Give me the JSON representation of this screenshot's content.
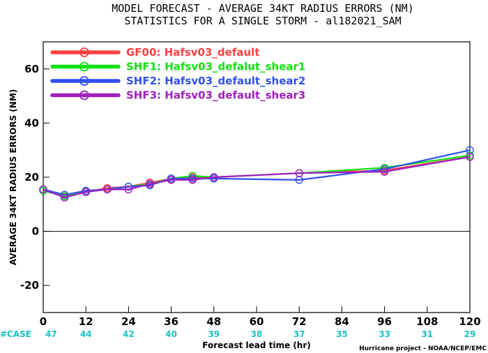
{
  "chart_data": {
    "type": "line",
    "title": "MODEL FORECAST - AVERAGE 34KT RADIUS ERRORS (NM)",
    "subtitle": "STATISTICS FOR A SINGLE STORM - al182021_SAM",
    "xlabel": "Forecast lead time (hr)",
    "ylabel": "AVERAGE 34KT RADIUS ERRORS (NM)",
    "xlim": [
      0,
      120
    ],
    "ylim": [
      -30,
      70
    ],
    "x_ticks": [
      0,
      12,
      24,
      36,
      48,
      60,
      72,
      84,
      96,
      108,
      120
    ],
    "y_ticks": [
      -20,
      0,
      20,
      40,
      60
    ],
    "case_label": "#CASE",
    "case_counts": [
      47,
      44,
      42,
      40,
      39,
      38,
      37,
      35,
      33,
      31,
      29
    ],
    "reference_line_y": 0,
    "grid": false,
    "legend_position": "top-left",
    "credit": "Hurricane project - NOAA/NCEP/EMC",
    "series": [
      {
        "name": "GF00: Hafsv03_default",
        "color": "#ff4040",
        "points": [
          [
            0,
            15.5
          ],
          [
            6,
            13
          ],
          [
            12,
            14.5
          ],
          [
            18,
            16
          ],
          [
            24,
            16.5
          ],
          [
            30,
            18
          ],
          [
            36,
            19.5
          ],
          [
            42,
            20
          ],
          [
            48,
            20
          ],
          [
            72,
            21.5
          ],
          [
            96,
            22.5
          ],
          [
            120,
            27.5
          ]
        ]
      },
      {
        "name": "SHF1: Hafsv03_defalut_shear1",
        "color": "#10e010",
        "points": [
          [
            0,
            15
          ],
          [
            6,
            13
          ],
          [
            12,
            15
          ],
          [
            18,
            15.5
          ],
          [
            24,
            16.5
          ],
          [
            30,
            17.5
          ],
          [
            36,
            19.5
          ],
          [
            42,
            20.5
          ],
          [
            48,
            20
          ],
          [
            72,
            21.5
          ],
          [
            96,
            23.5
          ],
          [
            120,
            28
          ]
        ]
      },
      {
        "name": "SHF2: Hafsv03_default_shear2",
        "color": "#3050f0",
        "points": [
          [
            0,
            15.5
          ],
          [
            6,
            13.5
          ],
          [
            12,
            15
          ],
          [
            18,
            15.5
          ],
          [
            24,
            16.5
          ],
          [
            30,
            17
          ],
          [
            36,
            19.5
          ],
          [
            42,
            19.5
          ],
          [
            48,
            19.5
          ],
          [
            72,
            19
          ],
          [
            96,
            23
          ],
          [
            120,
            30
          ]
        ]
      },
      {
        "name": "SHF3: Hafsv03_default_shear3",
        "color": "#a020c0",
        "points": [
          [
            0,
            15.5
          ],
          [
            6,
            12.5
          ],
          [
            12,
            14.5
          ],
          [
            18,
            15.5
          ],
          [
            24,
            15.5
          ],
          [
            30,
            17.5
          ],
          [
            36,
            19
          ],
          [
            42,
            19
          ],
          [
            48,
            20
          ],
          [
            72,
            21.5
          ],
          [
            96,
            22
          ],
          [
            120,
            27.5
          ]
        ]
      }
    ]
  }
}
